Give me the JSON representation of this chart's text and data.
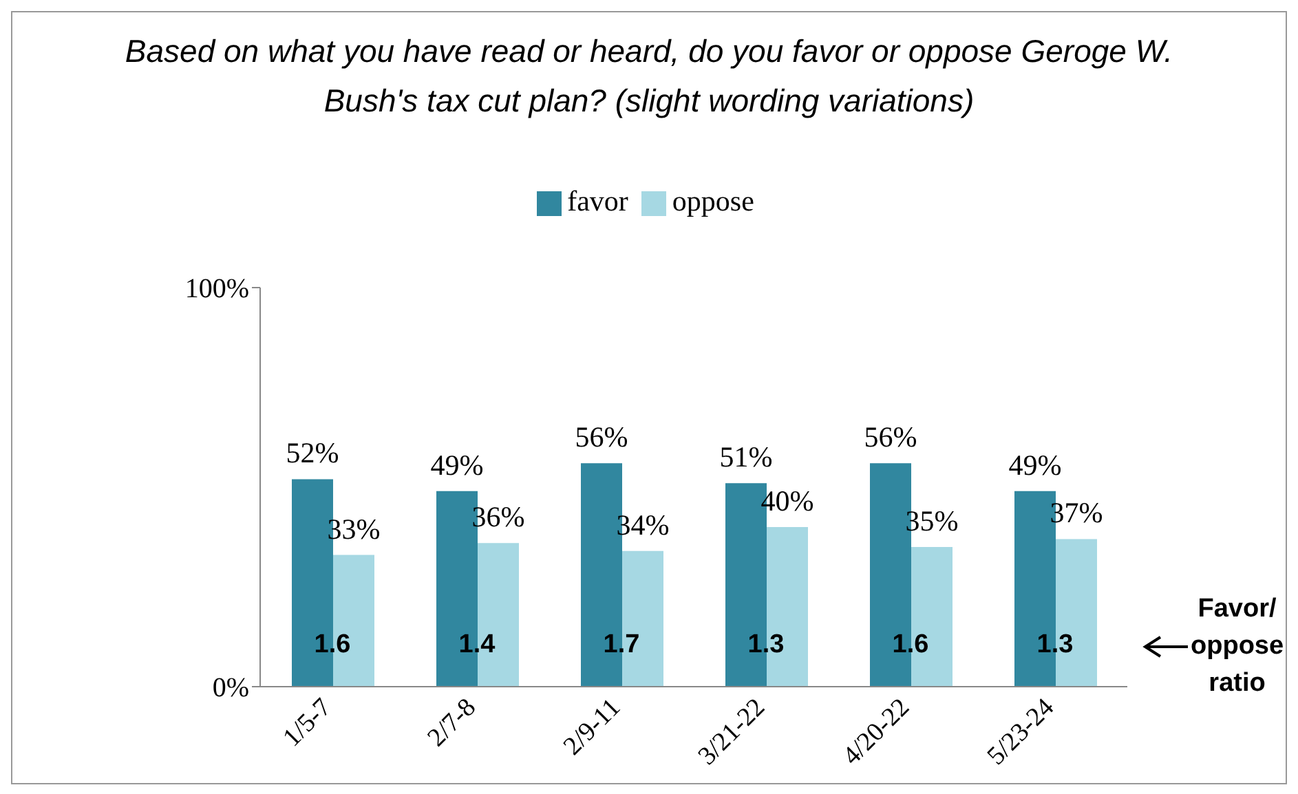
{
  "chart_data": {
    "type": "bar",
    "title": "Based on what you have read or heard, do you favor or oppose Geroge W. Bush's tax cut plan? (slight wording variations)",
    "categories": [
      "1/5-7",
      "2/7-8",
      "2/9-11",
      "3/21-22",
      "4/20-22",
      "5/23-24"
    ],
    "series": [
      {
        "name": "favor",
        "color": "#31879f",
        "values": [
          52,
          49,
          56,
          51,
          56,
          49
        ],
        "value_labels": [
          "52%",
          "49%",
          "56%",
          "51%",
          "56%",
          "49%"
        ]
      },
      {
        "name": "oppose",
        "color": "#a6d8e3",
        "values": [
          33,
          36,
          34,
          40,
          35,
          37
        ],
        "value_labels": [
          "33%",
          "36%",
          "34%",
          "40%",
          "35%",
          "37%"
        ]
      }
    ],
    "ylim": [
      0,
      100
    ],
    "yticks": [
      {
        "value": 0,
        "label": "0%"
      },
      {
        "value": 100,
        "label": "100%"
      }
    ],
    "grid": false,
    "legend": "top",
    "annotations": [
      {
        "text": "1.6",
        "x": "1/5-7",
        "y": 11
      },
      {
        "text": "1.4",
        "x": "2/7-8",
        "y": 11
      },
      {
        "text": "1.7",
        "x": "2/9-11",
        "y": 11
      },
      {
        "text": "1.3",
        "x": "3/21-22",
        "y": 11
      },
      {
        "text": "1.6",
        "x": "4/20-22",
        "y": 11
      },
      {
        "text": "1.3",
        "x": "5/23-24",
        "y": 11
      },
      "Favor/ oppose ratio"
    ]
  }
}
